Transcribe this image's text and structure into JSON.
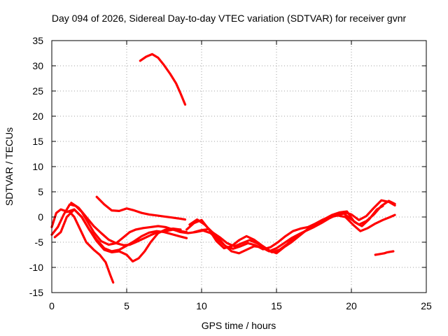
{
  "chart_data": {
    "type": "line",
    "title": "Day 094 of 2026, Sidereal Day-to-day VTEC variation (SDTVAR) for receiver gvnr",
    "xlabel": "GPS time / hours",
    "ylabel": "SDTVAR / TECUs",
    "xlim": [
      0,
      25
    ],
    "ylim": [
      -15,
      35
    ],
    "xticks": [
      0,
      5,
      10,
      15,
      20,
      25
    ],
    "yticks": [
      -15,
      -10,
      -5,
      0,
      5,
      10,
      15,
      20,
      25,
      30,
      35
    ],
    "grid": true,
    "legend": "none",
    "series_color": "#ff0000",
    "series": [
      {
        "name": "arc-1",
        "x": [
          5.9,
          6.3,
          6.7,
          7.1,
          7.5,
          7.9,
          8.3,
          8.6,
          8.9
        ],
        "y": [
          31,
          31.8,
          32.3,
          31.6,
          30.1,
          28.4,
          26.5,
          24.5,
          22.3
        ]
      },
      {
        "name": "arc-2",
        "x": [
          0,
          0.3,
          0.6,
          0.9,
          1.2,
          1.5,
          1.9,
          2.3,
          2.8,
          3.2,
          3.6,
          3.9,
          4.1
        ],
        "y": [
          -2,
          0.8,
          1.5,
          1.2,
          1,
          0,
          -2.5,
          -5,
          -6.5,
          -7.5,
          -9,
          -11.5,
          -13
        ]
      },
      {
        "name": "arc-3",
        "x": [
          0,
          0.4,
          0.8,
          1.2,
          1.6,
          2,
          2.4,
          2.8,
          3.3,
          3.8,
          4.3,
          4.8,
          5.2,
          5.6,
          6.1,
          6.6,
          7.1,
          7.6,
          8.1,
          8.6,
          9.1,
          9.6,
          10.1,
          10.6,
          11.1,
          11.6,
          12.1,
          12.6,
          13.1,
          13.6,
          14.1,
          14.6,
          15.1,
          15.6,
          16.1,
          16.6,
          17.1,
          17.6,
          18.1,
          18.6,
          19.1,
          19.6,
          20.1,
          20.6,
          21.1,
          21.6,
          22.1,
          22.6,
          22.9
        ],
        "y": [
          -3.5,
          -2,
          0.5,
          2.5,
          2.2,
          1,
          -1,
          -3,
          -4.8,
          -5.5,
          -5.2,
          -4,
          -3,
          -2.5,
          -2.2,
          -2,
          -1.8,
          -2,
          -2.5,
          -3,
          -3.2,
          -3,
          -2.7,
          -3.2,
          -4.5,
          -5.8,
          -6.3,
          -5.8,
          -5.2,
          -5.6,
          -6.4,
          -6,
          -5,
          -3.8,
          -2.8,
          -2.3,
          -2,
          -1.3,
          -0.5,
          0,
          0.3,
          0,
          -1.5,
          -2.8,
          -2.2,
          -1.3,
          -0.6,
          0,
          0.4
        ]
      },
      {
        "name": "arc-4",
        "x": [
          1,
          1.5,
          2,
          2.5,
          3,
          3.5,
          4,
          4.5,
          5,
          5.5,
          6,
          6.5,
          7,
          7.5,
          8,
          8.5,
          9
        ],
        "y": [
          1,
          1.5,
          0,
          -2.5,
          -4.5,
          -6.2,
          -6.8,
          -6.5,
          -5.7,
          -4.8,
          -3.8,
          -3.1,
          -2.8,
          -3,
          -3.4,
          -3.8,
          -4.2
        ]
      },
      {
        "name": "arc-5",
        "x": [
          1.3,
          1.8,
          2.3,
          2.8,
          3.3,
          3.8,
          4.3,
          4.8,
          5.2,
          5.6,
          6.1,
          6.6,
          7.1,
          7.6,
          8.1,
          8.6,
          9
        ],
        "y": [
          2.8,
          1.8,
          0,
          -1.8,
          -3.2,
          -4.5,
          -5.2,
          -5.6,
          -5.5,
          -5,
          -4.3,
          -3.6,
          -3,
          -2.8,
          -2.5,
          -2.8,
          -3
        ]
      },
      {
        "name": "arc-6",
        "x": [
          3,
          3.5,
          4,
          4.5,
          5,
          5.5,
          6,
          6.5,
          7,
          7.5,
          8,
          8.5,
          8.9
        ],
        "y": [
          4,
          2.5,
          1.3,
          1.2,
          1.7,
          1.3,
          0.8,
          0.5,
          0.3,
          0.1,
          -0.1,
          -0.3,
          -0.5
        ]
      },
      {
        "name": "arc-7",
        "x": [
          0.2,
          0.6,
          1,
          1.5,
          2,
          2.5,
          3,
          3.5,
          4,
          4.5,
          5,
          5.4,
          5.8,
          6.2,
          6.6,
          7.1,
          7.6,
          8.1,
          8.6
        ],
        "y": [
          -4,
          -3,
          0,
          1.5,
          0,
          -2.5,
          -4.8,
          -6.5,
          -7,
          -6.8,
          -7.5,
          -8.8,
          -8.2,
          -6.8,
          -5,
          -3.2,
          -2.5,
          -2.3,
          -2.5
        ]
      },
      {
        "name": "arc-8",
        "x": [
          9.2,
          9.7,
          10.2,
          10.7,
          11.2,
          11.7,
          12.2,
          12.7,
          13.2,
          13.7,
          14.2,
          14.7,
          15.2,
          15.7,
          16.2,
          16.7,
          17.2,
          17.7,
          18.2,
          18.7,
          19.2,
          19.7,
          20.2,
          20.7,
          21.2,
          21.7,
          22.1
        ],
        "y": [
          -1.5,
          -0.5,
          -1.5,
          -3,
          -4,
          -5.2,
          -5.8,
          -5.2,
          -4.6,
          -5.2,
          -6.2,
          -7,
          -6.5,
          -5.4,
          -4.1,
          -3.2,
          -2.2,
          -1.3,
          -0.4,
          0.4,
          0.9,
          1.1,
          -1,
          -1.8,
          -0.4,
          1.5,
          2.2
        ]
      },
      {
        "name": "arc-9",
        "x": [
          9.5,
          10,
          10.5,
          11,
          11.5,
          12,
          12.5,
          13,
          13.5,
          14,
          14.5,
          15,
          15.5,
          16,
          16.5,
          17,
          17.5,
          18,
          18.5,
          19,
          19.5,
          20,
          20.5,
          21,
          21.5,
          22,
          22.5,
          22.9
        ],
        "y": [
          -3,
          -2.6,
          -2.4,
          -3.8,
          -5.5,
          -6.8,
          -7.2,
          -6.5,
          -5.8,
          -6,
          -6.8,
          -6.2,
          -5.2,
          -4.2,
          -3.4,
          -2.7,
          -2,
          -1.2,
          -0.3,
          0.4,
          0.7,
          -0.5,
          -1.5,
          -0.8,
          0.5,
          2.2,
          3.2,
          2.6
        ]
      },
      {
        "name": "arc-10",
        "x": [
          9,
          9.5,
          10,
          10.5,
          11,
          11.5,
          12,
          12.5,
          13,
          13.5,
          14,
          14.5,
          15,
          15.5,
          16,
          16.5,
          17,
          17.5,
          18,
          18.5,
          19,
          19.5,
          20,
          20.5,
          21,
          21.5,
          22,
          22.5,
          22.9
        ],
        "y": [
          -2.5,
          -1.2,
          -0.6,
          -2.5,
          -4.8,
          -6.2,
          -5.8,
          -4.6,
          -3.8,
          -4.5,
          -5.6,
          -6.6,
          -7.2,
          -6,
          -5,
          -3.8,
          -2.6,
          -1.8,
          -1,
          0,
          0.6,
          1,
          0.5,
          -0.6,
          0.2,
          1.8,
          3.3,
          3,
          2.3
        ]
      },
      {
        "name": "arc-11",
        "x": [
          21.6,
          21.8,
          22,
          22.2,
          22.4,
          22.6,
          22.8
        ],
        "y": [
          -7.5,
          -7.4,
          -7.3,
          -7.2,
          -7,
          -6.9,
          -6.8
        ]
      }
    ]
  }
}
